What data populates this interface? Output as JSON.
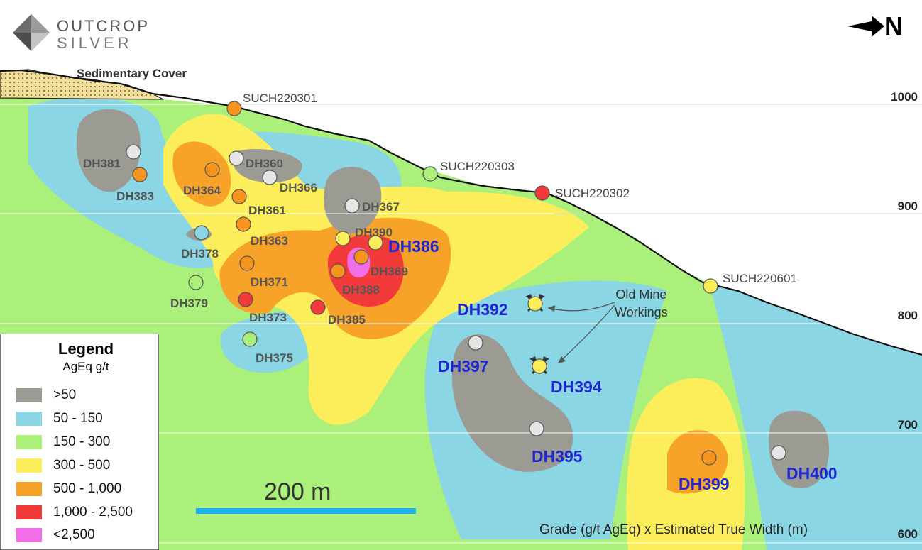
{
  "logo": {
    "line1": "OUTCROP",
    "line2": "SILVER"
  },
  "north_label": "N",
  "cover_label": "Sedimentary Cover",
  "elevations": [
    "1000",
    "900",
    "800",
    "700",
    "600"
  ],
  "scale_bar": {
    "label": "200 m"
  },
  "caption": "Grade (g/t AgEq) x Estimated True Width (m)",
  "annotation": {
    "line1": "Old Mine",
    "line2": "Workings"
  },
  "legend": {
    "title": "Legend",
    "subtitle": "AgEq g/t",
    "items": [
      {
        "label": ">50",
        "color": "#9c9b93"
      },
      {
        "label": "50 - 150",
        "color": "#8ad6e4"
      },
      {
        "label": "150 - 300",
        "color": "#aaf07a"
      },
      {
        "label": "300 - 500",
        "color": "#fbee5a"
      },
      {
        "label": "500 - 1,000",
        "color": "#f7a228"
      },
      {
        "label": "1,000 - 2,500",
        "color": "#f23a3a"
      },
      {
        "label": "<2,500",
        "color": "#f26ee6"
      }
    ]
  },
  "drillholes": [
    {
      "name": "DH381",
      "color": "#e6e6e6",
      "style": "grey"
    },
    {
      "name": "DH383",
      "color": "#f7941d",
      "style": "grey"
    },
    {
      "name": "DH364",
      "color": "#f7941d",
      "style": "grey"
    },
    {
      "name": "DH360",
      "color": "#e6e6e6",
      "style": "grey"
    },
    {
      "name": "DH366",
      "color": "#e6e6e6",
      "style": "grey"
    },
    {
      "name": "DH361",
      "color": "#f7941d",
      "style": "grey"
    },
    {
      "name": "DH363",
      "color": "#f7941d",
      "style": "grey"
    },
    {
      "name": "DH378",
      "color": "#8ad6e4",
      "style": "grey"
    },
    {
      "name": "DH371",
      "color": "#f7941d",
      "style": "grey"
    },
    {
      "name": "DH379",
      "color": "#aaf07a",
      "style": "grey"
    },
    {
      "name": "DH373",
      "color": "#f23a3a",
      "style": "grey"
    },
    {
      "name": "DH375",
      "color": "#aaf07a",
      "style": "grey"
    },
    {
      "name": "DH385",
      "color": "#f23a3a",
      "style": "grey"
    },
    {
      "name": "DH367",
      "color": "#e6e6e6",
      "style": "grey"
    },
    {
      "name": "DH390",
      "color": "#fbee5a",
      "style": "grey"
    },
    {
      "name": "DH386",
      "color": "#fbee5a",
      "style": "blue"
    },
    {
      "name": "DH369",
      "color": "#f7941d",
      "style": "grey"
    },
    {
      "name": "DH388",
      "color": "#f7941d",
      "style": "grey"
    },
    {
      "name": "DH392",
      "color": "#fbee5a",
      "style": "blue"
    },
    {
      "name": "DH397",
      "color": "#e6e6e6",
      "style": "blue"
    },
    {
      "name": "DH394",
      "color": "#fbee5a",
      "style": "blue"
    },
    {
      "name": "DH395",
      "color": "#e6e6e6",
      "style": "blue"
    },
    {
      "name": "DH399",
      "color": "#f7941d",
      "style": "blue"
    },
    {
      "name": "DH400",
      "color": "#e6e6e6",
      "style": "blue"
    }
  ],
  "surface_holes": [
    {
      "name": "SUCH220301",
      "color": "#f7941d"
    },
    {
      "name": "SUCH220303",
      "color": "#aaf07a"
    },
    {
      "name": "SUCH220302",
      "color": "#f23a3a"
    },
    {
      "name": "SUCH220601",
      "color": "#fbee5a"
    }
  ]
}
